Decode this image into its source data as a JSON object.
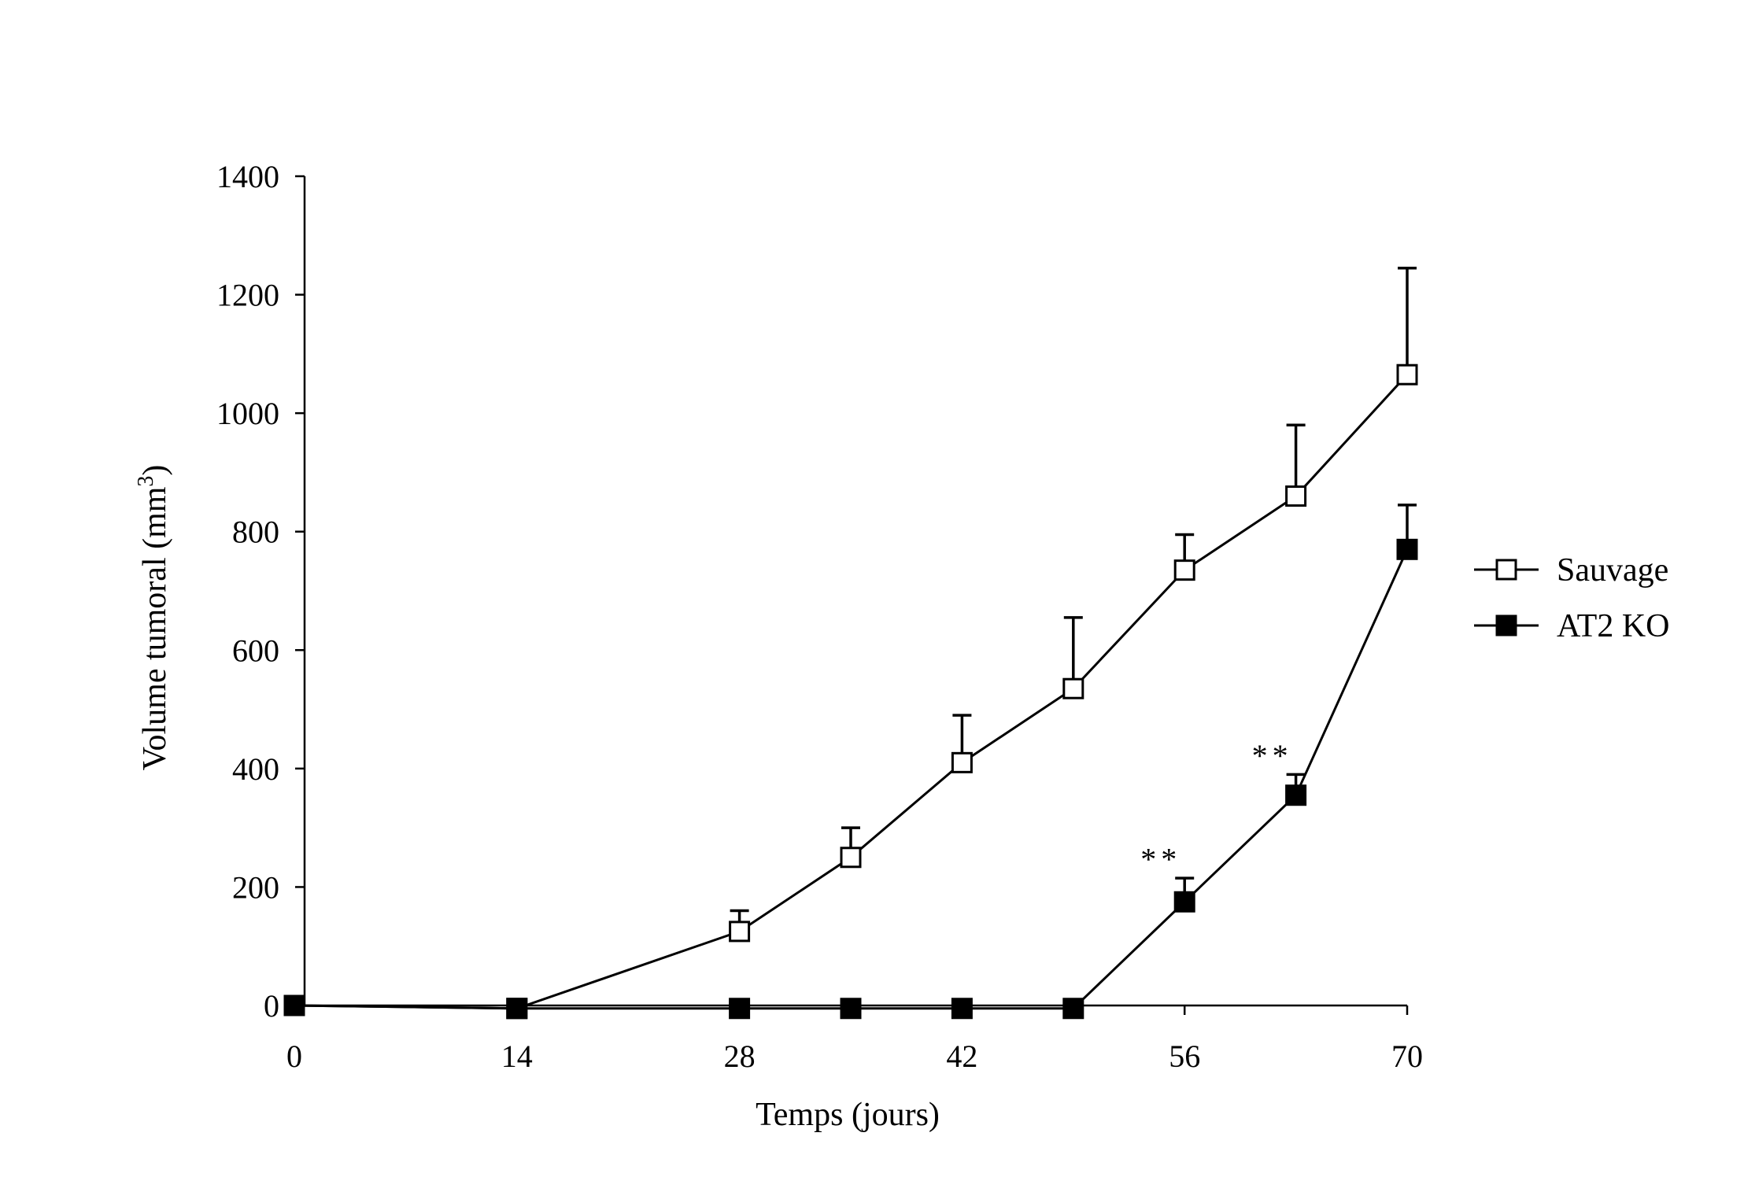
{
  "chart_data": {
    "type": "line",
    "title": "",
    "xlabel": "Temps (jours)",
    "ylabel_main": "Volume tumoral (mm",
    "ylabel_sup": "3",
    "ylabel_end": ")",
    "xlim": [
      0,
      70
    ],
    "ylim": [
      0,
      1400
    ],
    "xticks": [
      0,
      14,
      28,
      42,
      56,
      70
    ],
    "yticks": [
      0,
      200,
      400,
      600,
      800,
      1000,
      1200,
      1400
    ],
    "grid": false,
    "legend_position": "right",
    "series": [
      {
        "name": "Sauvage",
        "marker": "open-square",
        "x": [
          0,
          14,
          28,
          35,
          42,
          49,
          56,
          63,
          70
        ],
        "y": [
          0,
          -5,
          125,
          250,
          410,
          535,
          735,
          860,
          1065
        ],
        "error": [
          0,
          0,
          35,
          50,
          80,
          120,
          60,
          120,
          180
        ]
      },
      {
        "name": "AT2 KO",
        "marker": "filled-square",
        "x": [
          0,
          14,
          28,
          35,
          42,
          49,
          56,
          63,
          70
        ],
        "y": [
          0,
          -5,
          -5,
          -5,
          -5,
          -5,
          175,
          355,
          770
        ],
        "error": [
          0,
          0,
          0,
          0,
          0,
          0,
          40,
          35,
          75
        ]
      }
    ],
    "annotations": [
      {
        "text": "**",
        "x": 56,
        "y": 245
      },
      {
        "text": "**",
        "x": 63,
        "y": 420
      }
    ]
  }
}
